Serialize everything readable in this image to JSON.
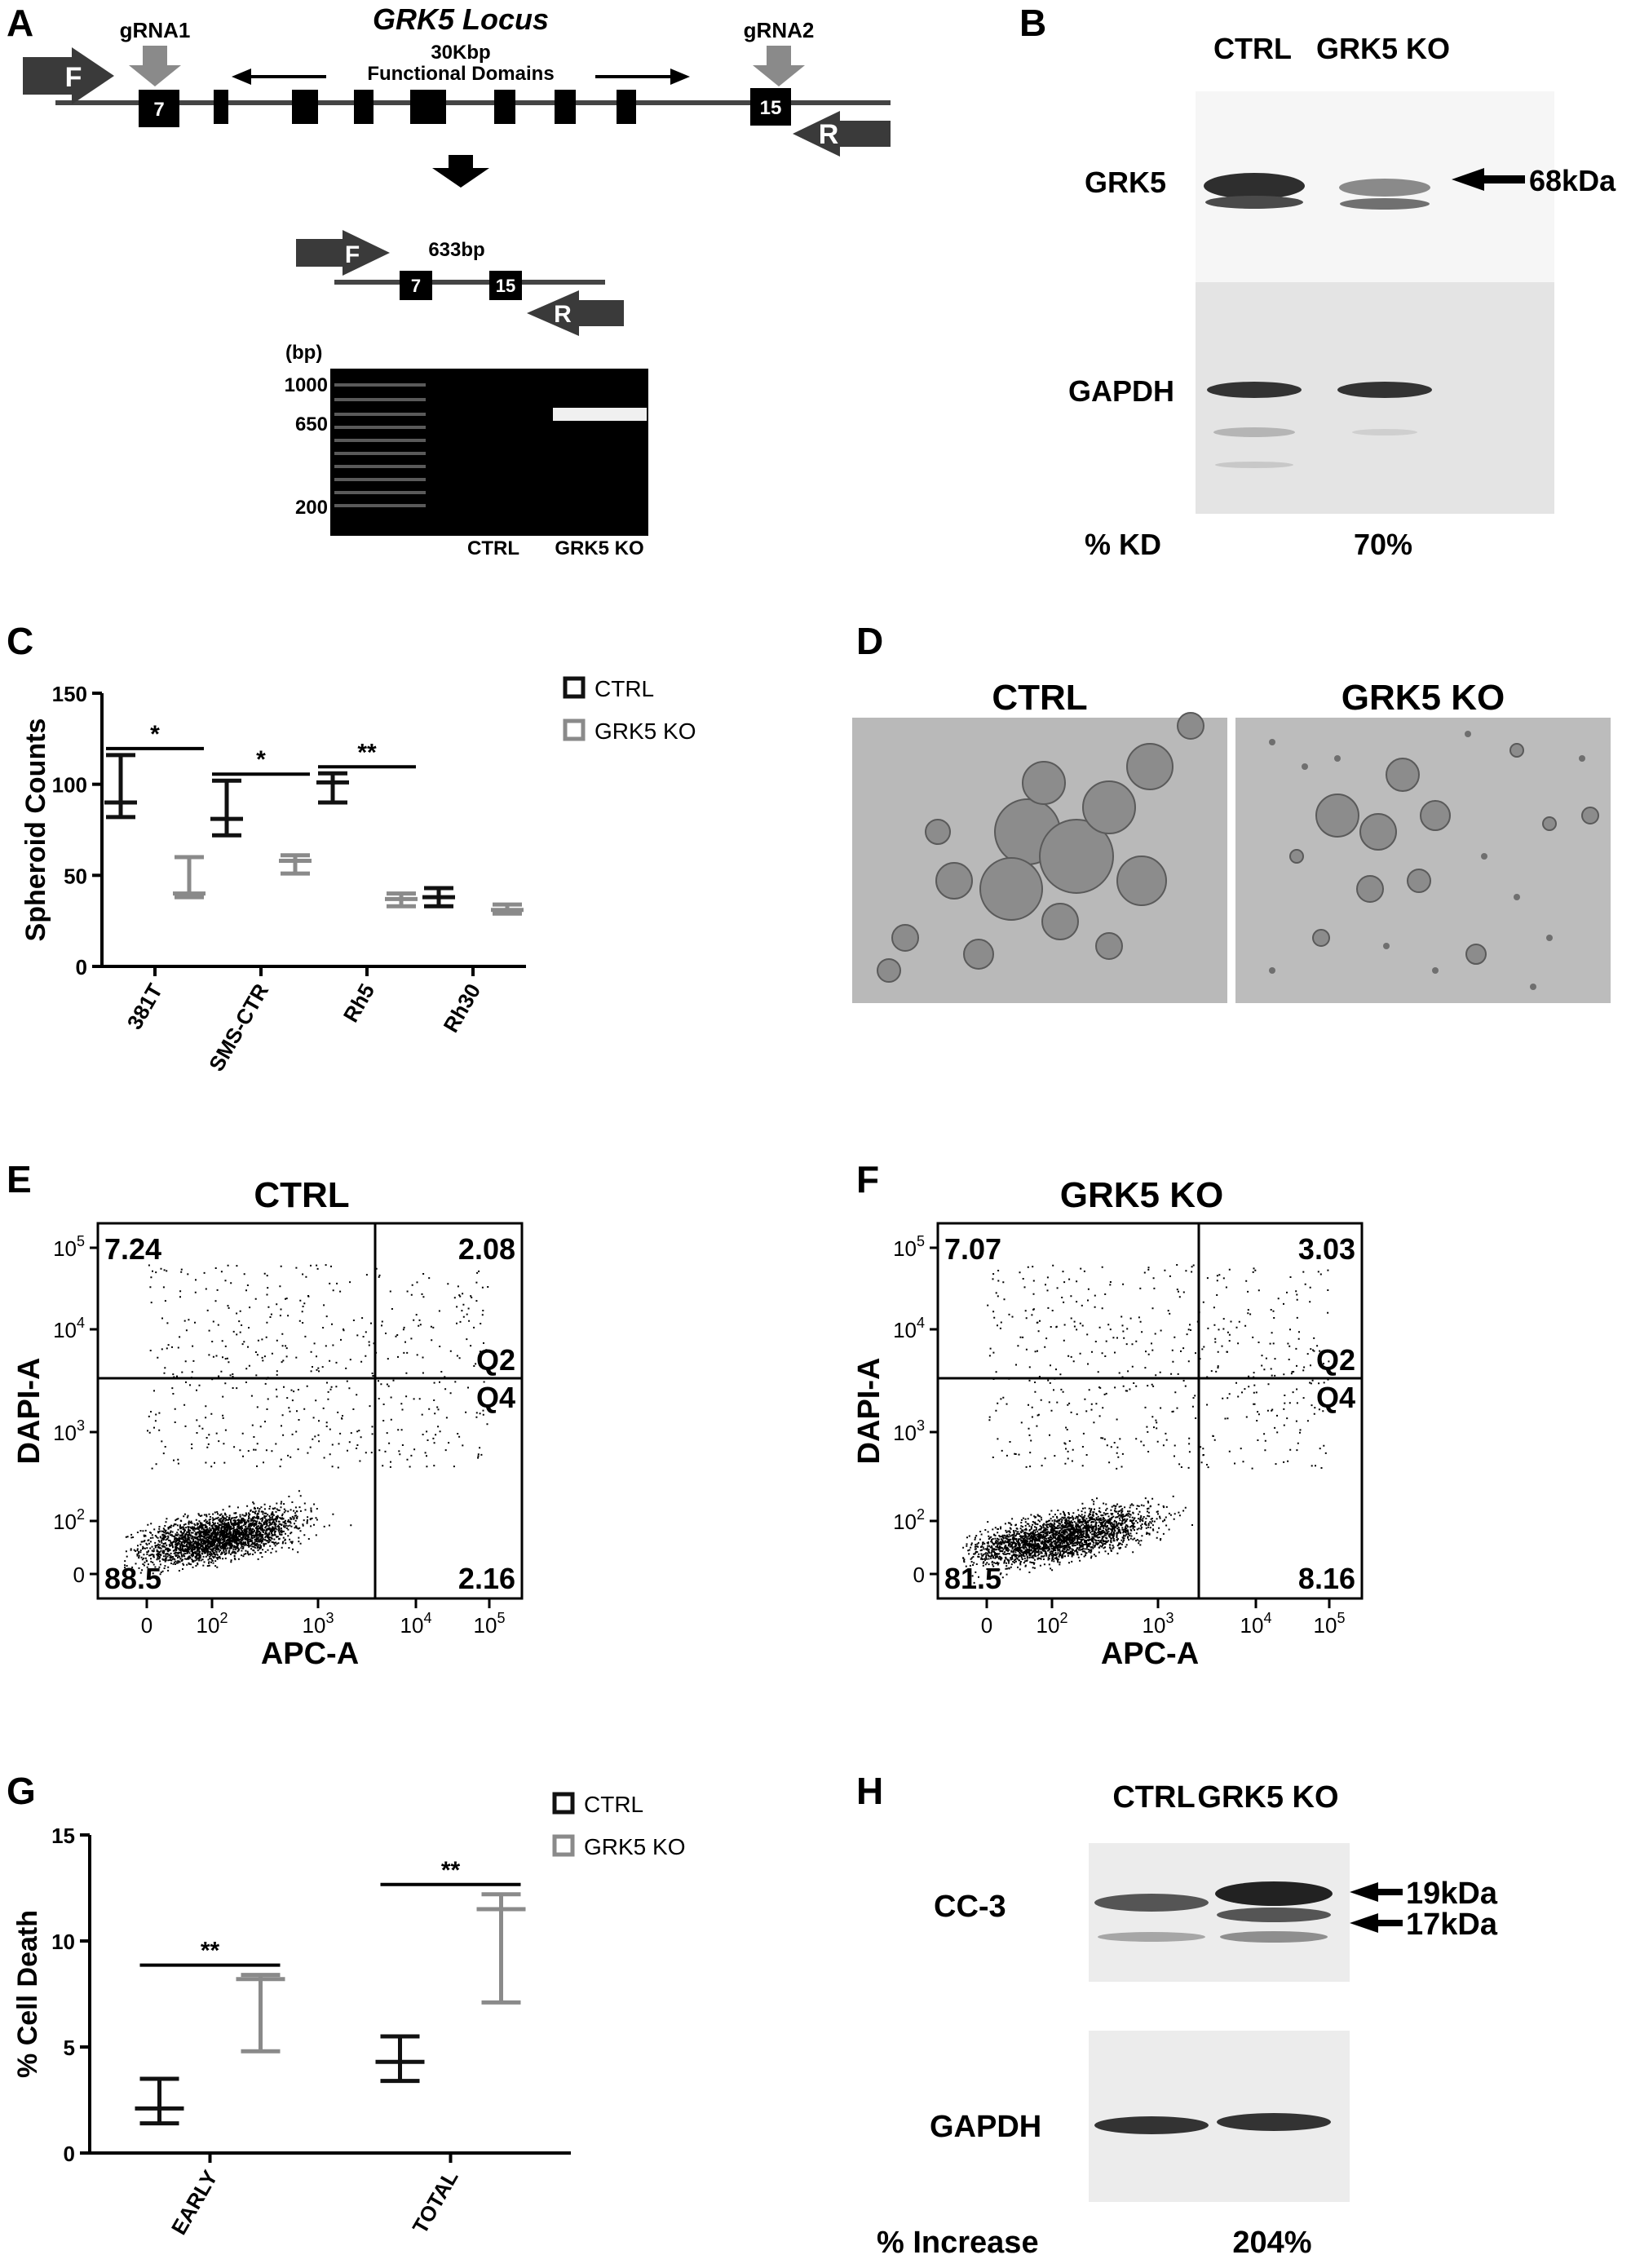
{
  "panel_letters": {
    "A": "A",
    "B": "B",
    "C": "C",
    "D": "D",
    "E": "E",
    "F": "F",
    "G": "G",
    "H": "H"
  },
  "panelA": {
    "locus_title": "GRK5 Locus",
    "locus_sub1": "30Kbp",
    "locus_sub2": "Functional Domains",
    "grna1": "gRNA1",
    "grna2": "gRNA2",
    "primer_f": "F",
    "primer_r": "R",
    "exon_a": "7",
    "exon_b": "15",
    "product": "633bp",
    "gel_unit": "(bp)",
    "ladder": [
      "1000",
      "650",
      "200"
    ],
    "lanes": [
      "CTRL",
      "GRK5 KO"
    ]
  },
  "panelB": {
    "lanes": [
      "CTRL",
      "GRK5 KO"
    ],
    "row1": "GRK5",
    "row2": "GAPDH",
    "marker": "68kDa",
    "kd_label": "% KD",
    "kd_value": "70%"
  },
  "panelC": {
    "chart_data": {
      "type": "scatter",
      "ylabel": "Spheroid Counts",
      "ylim": [
        0,
        150
      ],
      "yticks": [
        0,
        50,
        100,
        150
      ],
      "categories": [
        "381T",
        "SMS-CTR",
        "Rh5",
        "Rh30"
      ],
      "series": [
        {
          "name": "CTRL",
          "color": "#111111",
          "mean": [
            90,
            81,
            101,
            38
          ],
          "low": [
            82,
            72,
            90,
            33
          ],
          "high": [
            116,
            102,
            106,
            43
          ]
        },
        {
          "name": "GRK5 KO",
          "color": "#8a8a8a",
          "mean": [
            40,
            58,
            37,
            31
          ],
          "low": [
            38,
            51,
            33,
            29
          ],
          "high": [
            60,
            61,
            40,
            34
          ]
        }
      ],
      "significance": [
        "*",
        "*",
        "**",
        ""
      ],
      "legend": "top-right"
    }
  },
  "panelD": {
    "left_title": "CTRL",
    "right_title": "GRK5 KO"
  },
  "panelE": {
    "title": "CTRL",
    "xlabel": "APC-A",
    "ylabel": "DAPI-A",
    "q1": "7.24",
    "q2": "2.08",
    "q3": "88.5",
    "q4": "2.16",
    "gate_top": "Q2",
    "gate_bottom": "Q4"
  },
  "panelF": {
    "title": "GRK5 KO",
    "xlabel": "APC-A",
    "ylabel": "DAPI-A",
    "q1": "7.07",
    "q2": "3.03",
    "q3": "81.5",
    "q4": "8.16",
    "gate_top": "Q2",
    "gate_bottom": "Q4"
  },
  "flow_axes": {
    "yticks": [
      {
        "b": "10",
        "e": "5"
      },
      {
        "b": "10",
        "e": "4"
      },
      {
        "b": "10",
        "e": "3"
      },
      {
        "b": "10",
        "e": "2"
      },
      {
        "b": "0",
        "e": ""
      }
    ],
    "xticks": [
      {
        "b": "0",
        "e": ""
      },
      {
        "b": "10",
        "e": "2"
      },
      {
        "b": "10",
        "e": "3"
      },
      {
        "b": "10",
        "e": "4"
      },
      {
        "b": "10",
        "e": "5"
      }
    ]
  },
  "panelG": {
    "chart_data": {
      "type": "scatter",
      "ylabel": "% Cell Death",
      "ylim": [
        0,
        15
      ],
      "yticks": [
        0,
        5,
        10,
        15
      ],
      "categories": [
        "EARLY",
        "TOTAL"
      ],
      "series": [
        {
          "name": "CTRL",
          "color": "#111111",
          "mean": [
            2.1,
            4.3
          ],
          "low": [
            1.4,
            3.4
          ],
          "high": [
            3.5,
            5.5
          ]
        },
        {
          "name": "GRK5 KO",
          "color": "#8a8a8a",
          "mean": [
            8.2,
            11.5
          ],
          "low": [
            4.8,
            7.1
          ],
          "high": [
            8.4,
            12.2
          ]
        }
      ],
      "significance": [
        "**",
        "**"
      ],
      "legend": "top-right"
    }
  },
  "panelH": {
    "lanes": [
      "CTRL",
      "GRK5 KO"
    ],
    "row1": "CC-3",
    "row2": "GAPDH",
    "marker1": "19kDa",
    "marker2": "17kDa",
    "inc_label": "% Increase",
    "inc_value": "204%"
  }
}
